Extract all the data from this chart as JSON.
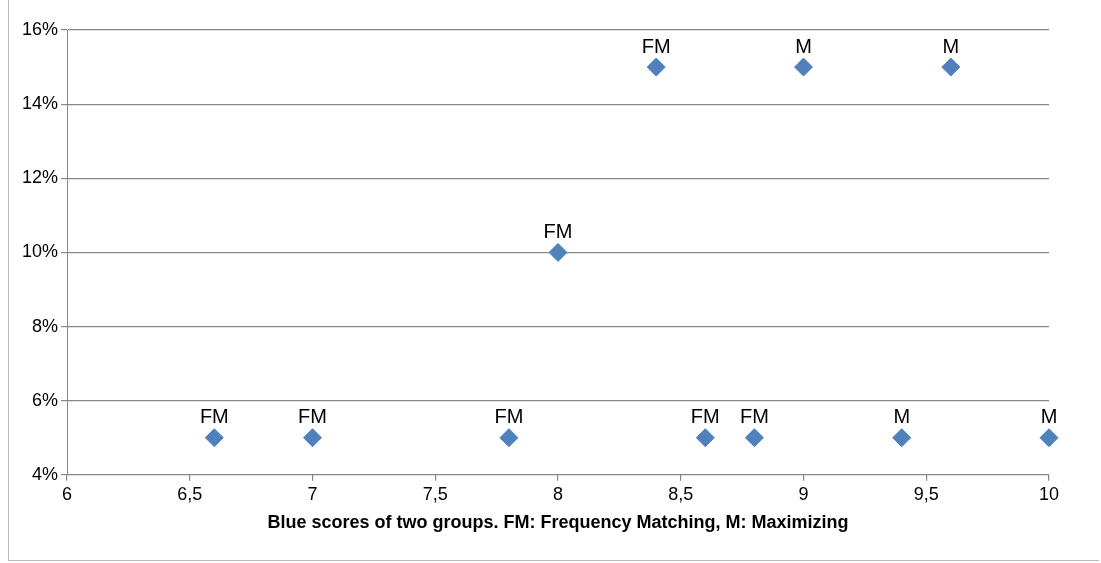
{
  "chart_data": {
    "type": "scatter",
    "xlabel": "Blue scores of two groups. FM: Frequency Matching, M: Maximizing",
    "x": [
      6.6,
      7,
      7.8,
      8,
      8.4,
      8.6,
      8.8,
      9,
      9.4,
      9.6,
      10
    ],
    "series": [
      {
        "color": "#4f81bd",
        "values": [
          5,
          5,
          5,
          10,
          15,
          5,
          5,
          15,
          5,
          15,
          5
        ]
      }
    ],
    "marker": "diamond",
    "grid": "y",
    "legend": false,
    "xlim": [
      6,
      10
    ],
    "xticks": [
      6,
      {
        "value": 6.5,
        "label": "6,5"
      },
      7,
      {
        "value": 7.5,
        "label": "7,5"
      },
      8,
      {
        "value": 8.5,
        "label": "8,5"
      },
      9,
      {
        "value": 9.5,
        "label": "9,5"
      },
      10
    ],
    "ylim": [
      4,
      16
    ],
    "yticks": [
      {
        "value": 4,
        "label": "4%"
      },
      {
        "value": 6,
        "label": "6%"
      },
      {
        "value": 8,
        "label": "8%"
      },
      {
        "value": 10,
        "label": "10%"
      },
      {
        "value": 12,
        "label": "12%"
      },
      {
        "value": 14,
        "label": "14%"
      },
      {
        "value": 16,
        "label": "16%"
      }
    ],
    "annotations": [
      {
        "text": "FM",
        "x": 6.6,
        "y": 5
      },
      {
        "text": "FM",
        "x": 7,
        "y": 5
      },
      {
        "text": "FM",
        "x": 7.8,
        "y": 5
      },
      {
        "text": "FM",
        "x": 8,
        "y": 10
      },
      {
        "text": "FM",
        "x": 8.4,
        "y": 15
      },
      {
        "text": "FM",
        "x": 8.6,
        "y": 5
      },
      {
        "text": "FM",
        "x": 8.8,
        "y": 5
      },
      {
        "text": "M",
        "x": 9,
        "y": 15
      },
      {
        "text": "M",
        "x": 9.4,
        "y": 5
      },
      {
        "text": "M",
        "x": 9.6,
        "y": 15
      },
      {
        "text": "M",
        "x": 10,
        "y": 5
      }
    ]
  }
}
